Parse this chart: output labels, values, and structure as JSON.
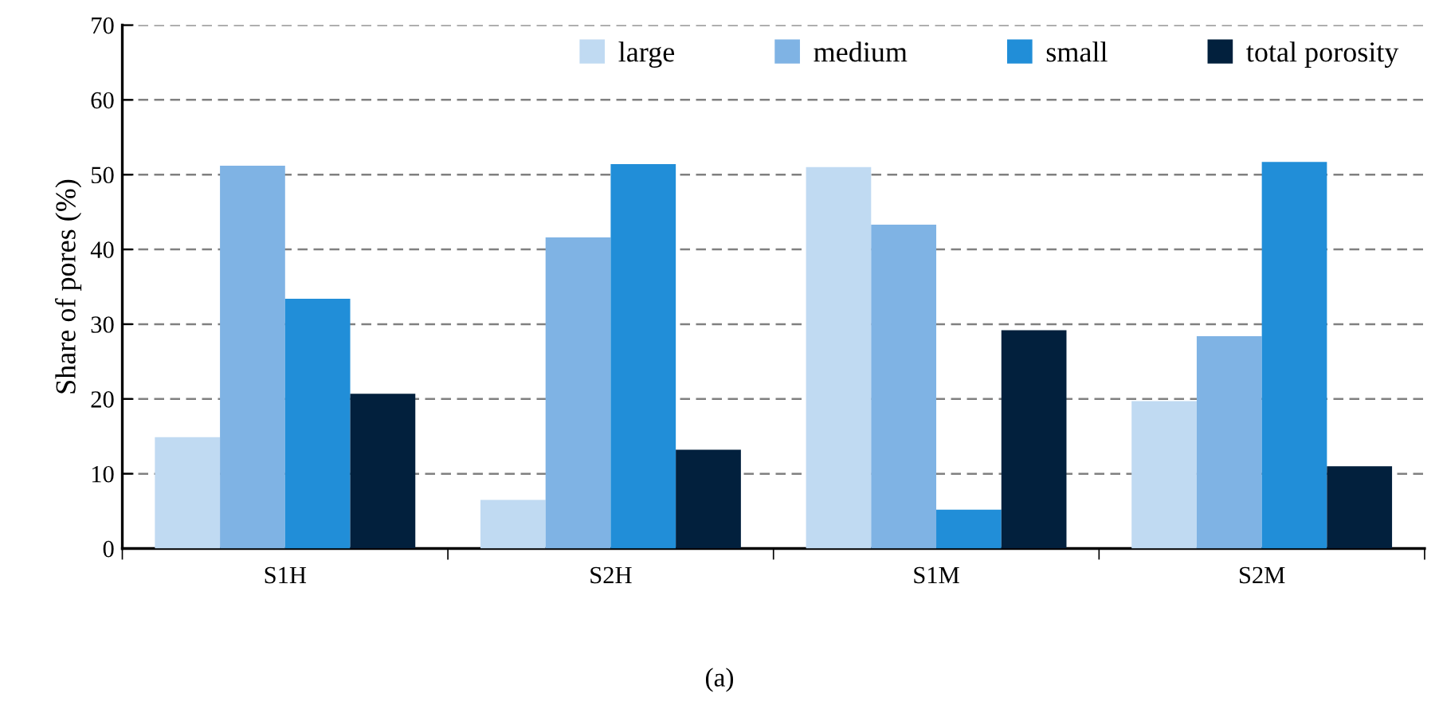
{
  "chart_data": {
    "type": "bar",
    "ylabel": "Share of pores (%)",
    "categories": [
      "S1H",
      "S2H",
      "S1M",
      "S2M"
    ],
    "series": [
      {
        "name": "large",
        "color": "#c0daf2",
        "values": [
          14.9,
          6.5,
          51.0,
          19.7
        ]
      },
      {
        "name": "medium",
        "color": "#7fb3e4",
        "values": [
          51.2,
          41.6,
          43.3,
          28.4
        ]
      },
      {
        "name": "small",
        "color": "#218ed8",
        "values": [
          33.4,
          51.4,
          5.2,
          51.7
        ]
      },
      {
        "name": "total porosity",
        "color": "#02203d",
        "values": [
          20.7,
          13.2,
          29.2,
          11.0
        ]
      }
    ],
    "ylim": [
      0,
      70
    ],
    "yticks": [
      0,
      10,
      20,
      30,
      40,
      50,
      60,
      70
    ],
    "grid": "y",
    "legend": "top right",
    "annotations": [
      "(a)"
    ]
  }
}
